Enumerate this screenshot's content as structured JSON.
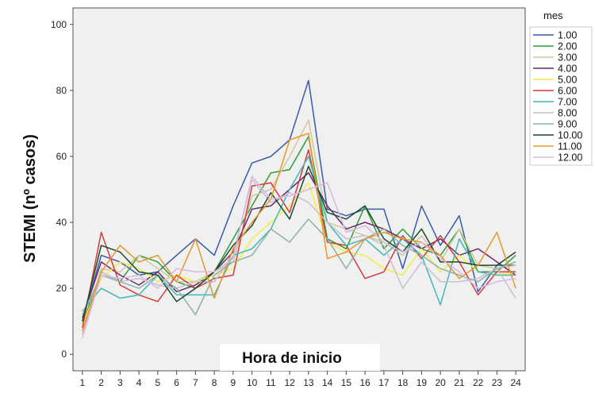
{
  "chart_data": {
    "type": "line",
    "title": "",
    "xlabel": "Hora de inicio",
    "ylabel": "STEMI (nº casos)",
    "x": [
      1,
      2,
      3,
      4,
      5,
      6,
      7,
      8,
      9,
      10,
      11,
      12,
      13,
      14,
      15,
      16,
      17,
      18,
      19,
      20,
      21,
      22,
      23,
      24
    ],
    "xlim": [
      0.5,
      24.5
    ],
    "ylim": [
      -5,
      105
    ],
    "yticks": [
      0,
      20,
      40,
      60,
      80,
      100
    ],
    "grid": false,
    "legend_title": "mes",
    "legend_position": "right",
    "series": [
      {
        "name": "1.00",
        "color": "#3a5aa8",
        "values": [
          10,
          30,
          28,
          24,
          25,
          30,
          35,
          30,
          45,
          58,
          60,
          65,
          83,
          44,
          42,
          44,
          44,
          26,
          45,
          33,
          42,
          19,
          27,
          27
        ]
      },
      {
        "name": "2.00",
        "color": "#2e9e3a",
        "values": [
          9,
          25,
          22,
          30,
          28,
          22,
          20,
          25,
          35,
          45,
          55,
          56,
          66,
          35,
          32,
          45,
          32,
          38,
          32,
          30,
          38,
          25,
          25,
          30
        ]
      },
      {
        "name": "3.00",
        "color": "#cfc99a",
        "values": [
          7,
          26,
          25,
          30,
          26,
          22,
          22,
          25,
          28,
          48,
          50,
          60,
          71,
          40,
          38,
          36,
          34,
          30,
          36,
          28,
          38,
          27,
          26,
          27
        ]
      },
      {
        "name": "4.00",
        "color": "#6b2a6e",
        "values": [
          11,
          28,
          24,
          21,
          25,
          19,
          21,
          25,
          31,
          44,
          45,
          50,
          55,
          45,
          38,
          40,
          38,
          35,
          32,
          35,
          30,
          32,
          28,
          24
        ]
      },
      {
        "name": "5.00",
        "color": "#f2ee4a",
        "values": [
          9,
          23,
          28,
          26,
          22,
          24,
          22,
          24,
          26,
          35,
          40,
          45,
          52,
          34,
          31,
          30,
          26,
          24,
          32,
          25,
          30,
          25,
          24,
          25
        ]
      },
      {
        "name": "6.00",
        "color": "#d63a3a",
        "values": [
          8,
          37,
          21,
          18,
          16,
          24,
          20,
          23,
          24,
          51,
          52,
          43,
          62,
          34,
          33,
          23,
          25,
          36,
          29,
          36,
          28,
          18,
          25,
          25
        ]
      },
      {
        "name": "7.00",
        "color": "#3fb8b8",
        "values": [
          13,
          20,
          17,
          18,
          24,
          18,
          18,
          18,
          30,
          32,
          38,
          50,
          60,
          40,
          33,
          35,
          30,
          35,
          30,
          15,
          35,
          25,
          24,
          24
        ]
      },
      {
        "name": "8.00",
        "color": "#c8bfcf",
        "values": [
          6,
          25,
          22,
          23,
          21,
          20,
          22,
          22,
          30,
          53,
          46,
          49,
          46,
          40,
          35,
          36,
          33,
          20,
          28,
          22,
          22,
          23,
          26,
          17
        ]
      },
      {
        "name": "9.00",
        "color": "#8cb2a6",
        "values": [
          12,
          24,
          22,
          20,
          24,
          20,
          12,
          24,
          28,
          30,
          38,
          34,
          41,
          35,
          26,
          35,
          38,
          33,
          30,
          26,
          24,
          22,
          26,
          28
        ]
      },
      {
        "name": "10.00",
        "color": "#1c4a2a",
        "values": [
          10,
          33,
          31,
          25,
          24,
          16,
          20,
          25,
          33,
          39,
          49,
          41,
          57,
          43,
          41,
          45,
          35,
          31,
          38,
          28,
          28,
          27,
          27,
          31
        ]
      },
      {
        "name": "11.00",
        "color": "#e8962a",
        "values": [
          7,
          25,
          33,
          28,
          30,
          22,
          35,
          17,
          32,
          40,
          47,
          65,
          67,
          29,
          31,
          35,
          37,
          35,
          34,
          30,
          23,
          27,
          37,
          20
        ]
      },
      {
        "name": "12.00",
        "color": "#d8b8e2",
        "values": [
          5,
          24,
          23,
          24,
          20,
          26,
          25,
          25,
          29,
          54,
          47,
          48,
          50,
          52,
          37,
          39,
          34,
          31,
          34,
          29,
          25,
          20,
          22,
          23
        ]
      }
    ]
  }
}
